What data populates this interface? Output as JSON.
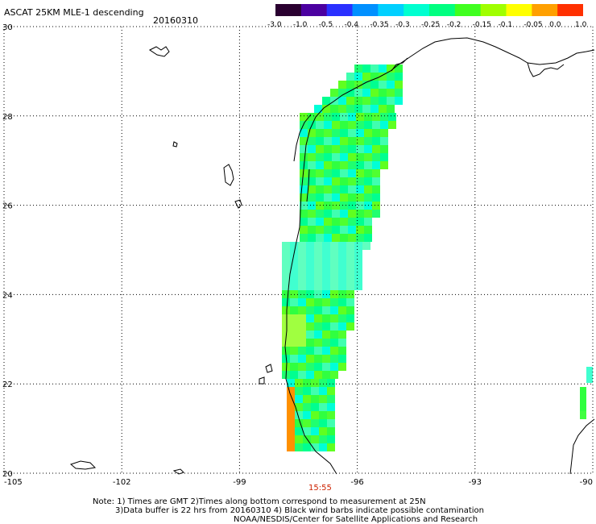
{
  "header": {
    "title": "ASCAT 25KM MLE-1 descending",
    "date": "20160310"
  },
  "colorbar": {
    "tick_labels": [
      "-3.0",
      "-1.0",
      "-0.5",
      "-0.4",
      "-0.35",
      "-0.3",
      "-0.25",
      "-0.2",
      "-0.15",
      "-0.1",
      "-0.05",
      "0.0",
      "1.0"
    ],
    "colors": [
      "#2a0030",
      "#4b00a0",
      "#2a30ff",
      "#0090ff",
      "#00d0ff",
      "#00ffd0",
      "#00ff80",
      "#40ff20",
      "#a0ff00",
      "#ffff00",
      "#ffa000",
      "#ff3000"
    ]
  },
  "map": {
    "lon_labels": [
      "-105",
      "-102",
      "-99",
      "-96",
      "-93",
      "-90"
    ],
    "lat_labels": [
      "20",
      "22",
      "24",
      "26",
      "28",
      "30"
    ],
    "colors": {
      "grid": "#000000",
      "coast": "#000000"
    },
    "overpass_time": "15:55"
  },
  "notes": {
    "line1": "Note: 1) Times are GMT 2)Times along bottom correspond to measurement at 25N",
    "line2": "3)Data buffer is 22 hrs from 20160310 4) Black wind barbs indicate possible contamination",
    "line3": "NOAA/NESDIS/Center for Satellite Applications and Research"
  }
}
